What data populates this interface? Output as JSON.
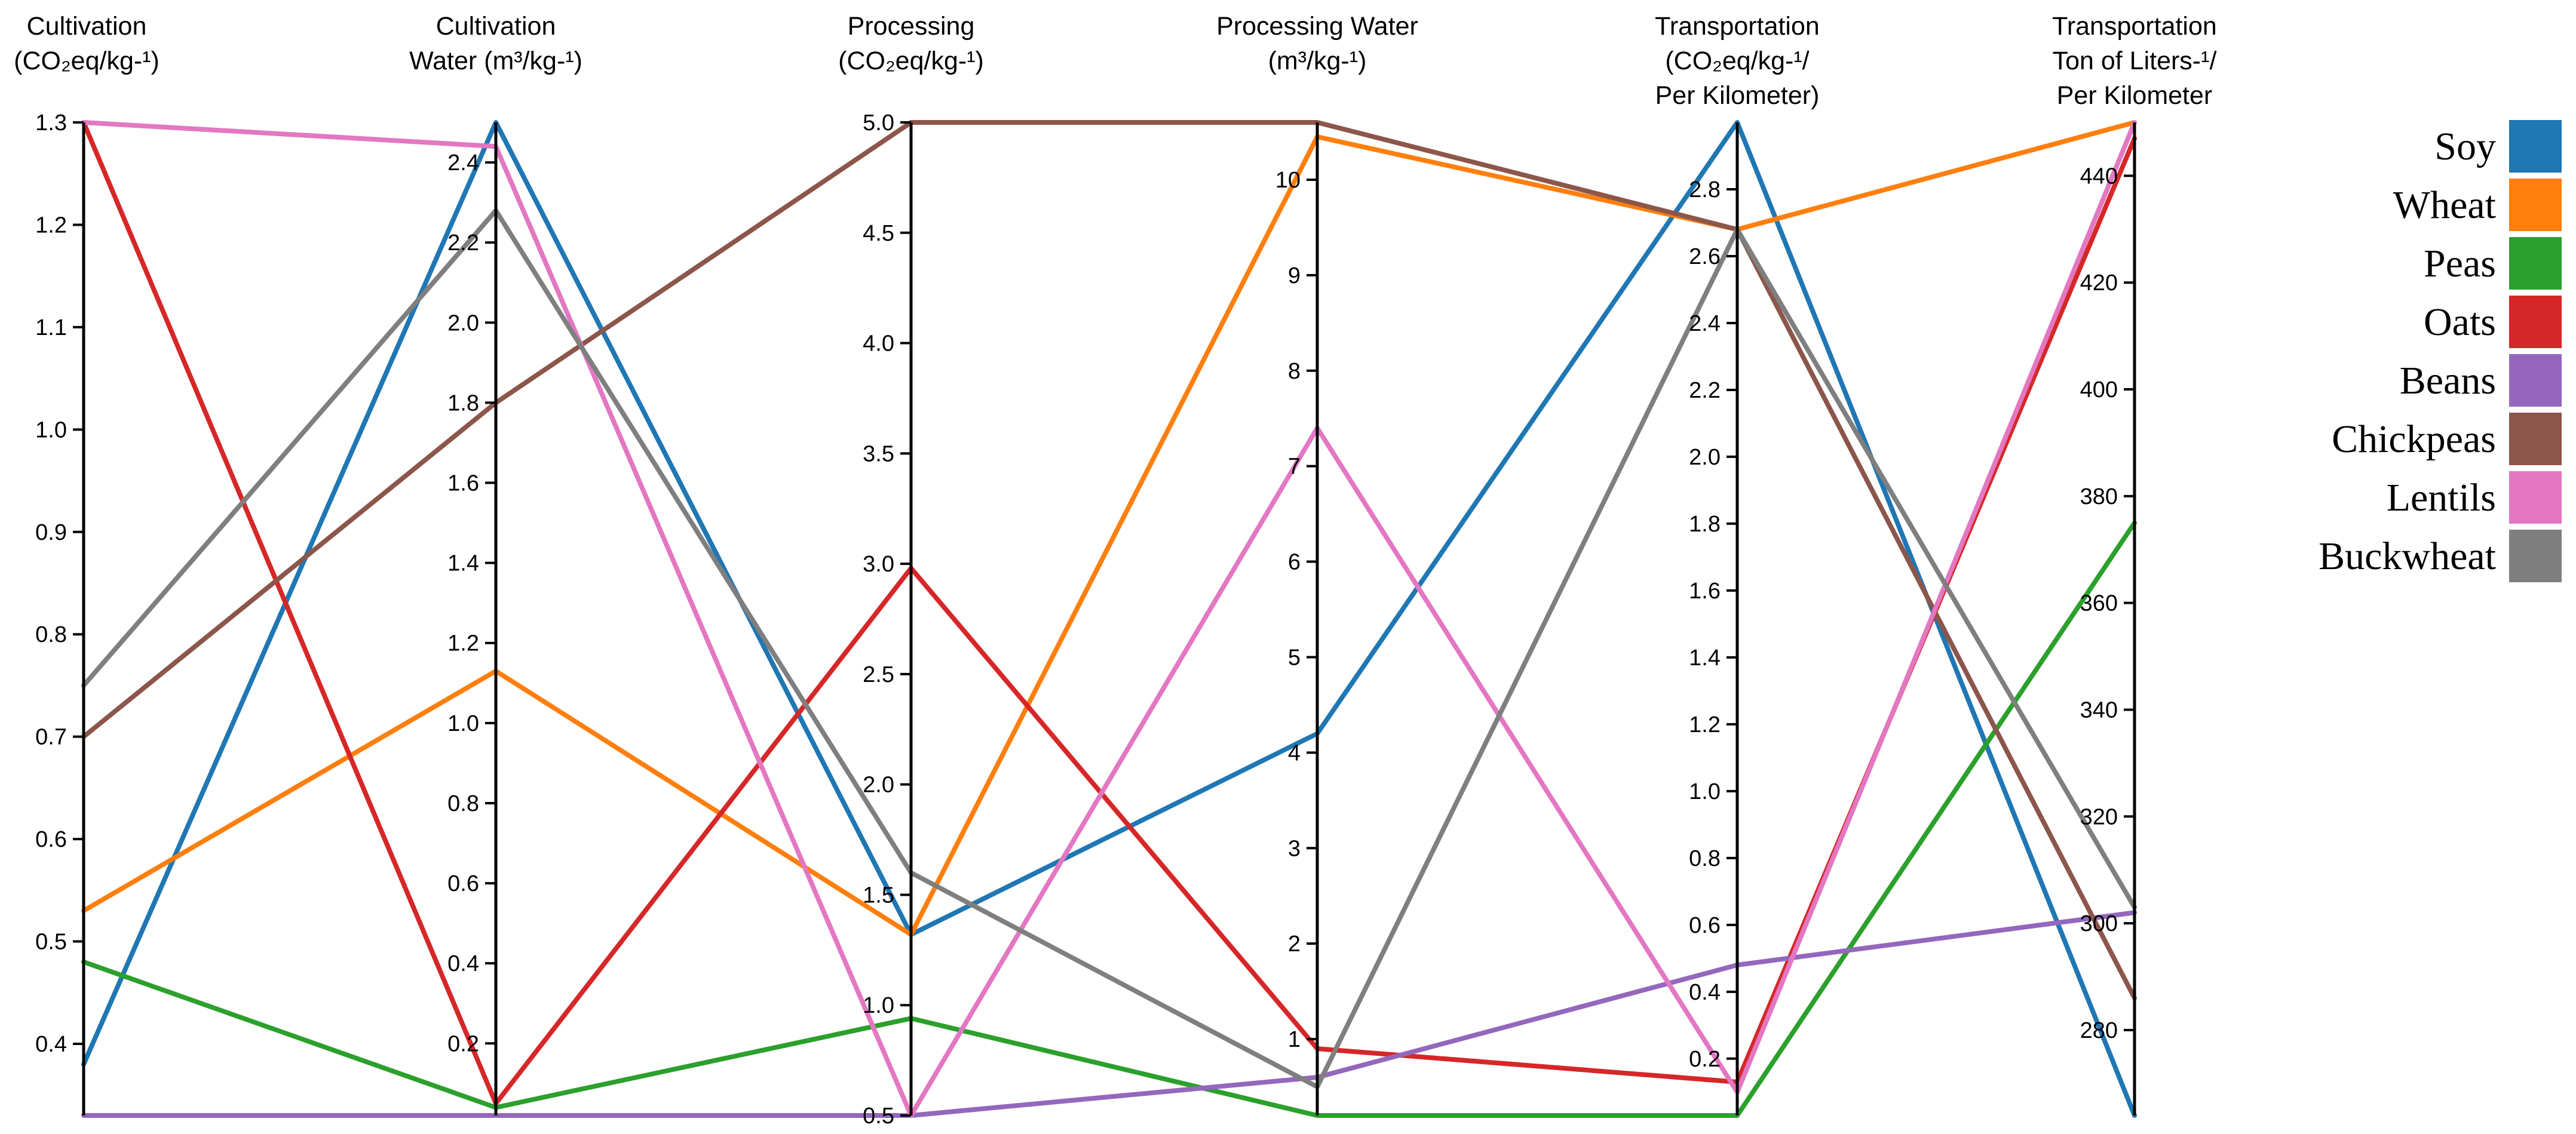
{
  "chart_data": {
    "type": "parallel_coordinates",
    "axes": [
      {
        "key": "cultivation",
        "title_lines": [
          "Cultivation",
          "(CO₂eq/kg-¹)"
        ],
        "range": [
          0.33,
          1.3
        ],
        "ticks": [
          0.4,
          0.5,
          0.6,
          0.7,
          0.8,
          0.9,
          1.0,
          1.1,
          1.2,
          1.3
        ],
        "tick_labels": [
          "0.4",
          "0.5",
          "0.6",
          "0.7",
          "0.8",
          "0.9",
          "1.0",
          "1.1",
          "1.2",
          "1.3"
        ]
      },
      {
        "key": "cultivation_water",
        "title_lines": [
          "Cultivation",
          "Water (m³/kg-¹)"
        ],
        "range": [
          0.02,
          2.5
        ],
        "ticks": [
          0.2,
          0.4,
          0.6,
          0.8,
          1.0,
          1.2,
          1.4,
          1.6,
          1.8,
          2.0,
          2.2,
          2.4
        ],
        "tick_labels": [
          "0.2",
          "0.4",
          "0.6",
          "0.8",
          "1.0",
          "1.2",
          "1.4",
          "1.6",
          "1.8",
          "2.0",
          "2.2",
          "2.4"
        ]
      },
      {
        "key": "processing",
        "title_lines": [
          "Processing",
          "(CO₂eq/kg-¹)"
        ],
        "range": [
          0.5,
          5.0
        ],
        "ticks": [
          0.5,
          1.0,
          1.5,
          2.0,
          2.5,
          3.0,
          3.5,
          4.0,
          4.5,
          5.0
        ],
        "tick_labels": [
          "0.5",
          "1.0",
          "1.5",
          "2.0",
          "2.5",
          "3.0",
          "3.5",
          "4.0",
          "4.5",
          "5.0"
        ]
      },
      {
        "key": "processing_water",
        "title_lines": [
          "Processing Water",
          "(m³/kg-¹)"
        ],
        "range": [
          0.2,
          10.6
        ],
        "ticks": [
          1,
          2,
          3,
          4,
          5,
          6,
          7,
          8,
          9,
          10
        ],
        "tick_labels": [
          "1",
          "2",
          "3",
          "4",
          "5",
          "6",
          "7",
          "8",
          "9",
          "10"
        ]
      },
      {
        "key": "transportation",
        "title_lines": [
          "Transportation",
          "(CO₂eq/kg-¹/",
          "Per Kilometer)"
        ],
        "range": [
          0.03,
          3.0
        ],
        "ticks": [
          0.2,
          0.4,
          0.6,
          0.8,
          1.0,
          1.2,
          1.4,
          1.6,
          1.8,
          2.0,
          2.2,
          2.4,
          2.6,
          2.8
        ],
        "tick_labels": [
          "0.2",
          "0.4",
          "0.6",
          "0.8",
          "1.0",
          "1.2",
          "1.4",
          "1.6",
          "1.8",
          "2.0",
          "2.2",
          "2.4",
          "2.6",
          "2.8"
        ]
      },
      {
        "key": "transportation_ton",
        "title_lines": [
          "Transportation",
          "Ton of Liters-¹/",
          "Per Kilometer"
        ],
        "range": [
          264,
          450
        ],
        "ticks": [
          280,
          300,
          320,
          340,
          360,
          380,
          400,
          420,
          440
        ],
        "tick_labels": [
          "280",
          "300",
          "320",
          "340",
          "360",
          "380",
          "400",
          "420",
          "440"
        ]
      }
    ],
    "series": [
      {
        "name": "Soy",
        "color": "#1f77b4",
        "values": [
          0.38,
          2.5,
          1.32,
          4.2,
          3.0,
          264
        ]
      },
      {
        "name": "Wheat",
        "color": "#ff7f0e",
        "values": [
          0.53,
          1.13,
          1.32,
          10.45,
          2.68,
          450
        ]
      },
      {
        "name": "Peas",
        "color": "#2ca02c",
        "values": [
          0.48,
          0.04,
          0.94,
          0.2,
          0.03,
          375
        ]
      },
      {
        "name": "Oats",
        "color": "#d62728",
        "values": [
          1.3,
          0.05,
          2.98,
          0.9,
          0.13,
          447
        ]
      },
      {
        "name": "Beans",
        "color": "#9467bd",
        "values": [
          0.33,
          0.02,
          0.5,
          0.6,
          0.48,
          302
        ]
      },
      {
        "name": "Chickpeas",
        "color": "#8c564b",
        "values": [
          0.7,
          1.8,
          5.0,
          10.6,
          2.68,
          286
        ]
      },
      {
        "name": "Lentils",
        "color": "#e377c2",
        "values": [
          1.3,
          2.44,
          0.5,
          7.4,
          0.1,
          450
        ]
      },
      {
        "name": "Buckwheat",
        "color": "#7f7f7f",
        "values": [
          0.75,
          2.28,
          1.6,
          0.5,
          2.68,
          303
        ]
      }
    ],
    "legend_position": "right"
  }
}
